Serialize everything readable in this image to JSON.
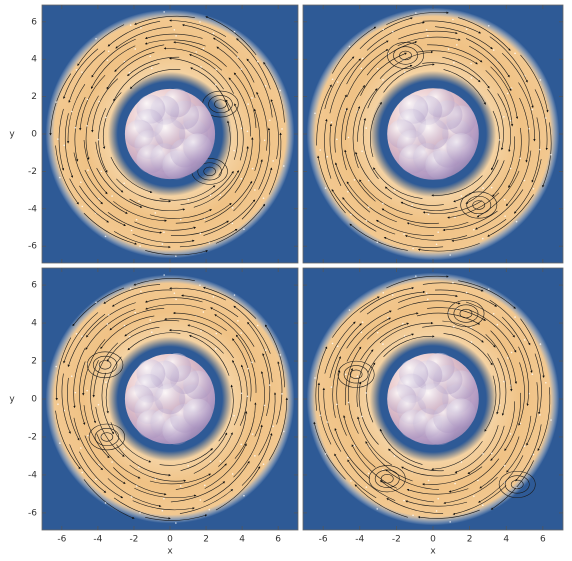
{
  "chart_data": [
    {
      "type": "streamplot",
      "ylabel": "y",
      "xlim": [
        -7.1,
        7.1
      ],
      "ylim": [
        -6.9,
        6.9
      ],
      "xticks": [
        -6,
        -4,
        -2,
        0,
        2,
        4,
        6
      ],
      "yticks": [
        -6,
        -4,
        -2,
        0,
        2,
        4,
        6
      ]
    },
    {
      "type": "streamplot",
      "xlim": [
        -7.1,
        7.1
      ],
      "ylim": [
        -6.9,
        6.9
      ],
      "xticks": [
        -6,
        -4,
        -2,
        0,
        2,
        4,
        6
      ],
      "yticks": [
        -6,
        -4,
        -2,
        0,
        2,
        4,
        6
      ]
    },
    {
      "type": "streamplot",
      "xlabel": "x",
      "ylabel": "y",
      "xlim": [
        -7.1,
        7.1
      ],
      "ylim": [
        -6.9,
        6.9
      ],
      "xticks": [
        -6,
        -4,
        -2,
        0,
        2,
        4,
        6
      ],
      "yticks": [
        -6,
        -4,
        -2,
        0,
        2,
        4,
        6
      ]
    },
    {
      "type": "streamplot",
      "xlabel": "x",
      "xlim": [
        -7.1,
        7.1
      ],
      "ylim": [
        -6.9,
        6.9
      ],
      "xticks": [
        -6,
        -4,
        -2,
        0,
        2,
        4,
        6
      ],
      "yticks": [
        -6,
        -4,
        -2,
        0,
        2,
        4,
        6
      ]
    }
  ]
}
